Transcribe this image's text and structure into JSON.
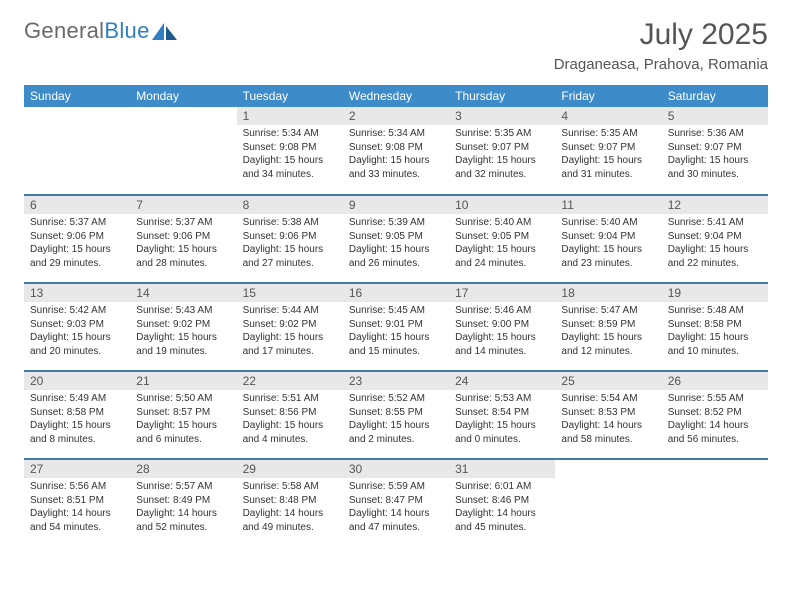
{
  "logo": {
    "word1": "General",
    "word2": "Blue"
  },
  "title": "July 2025",
  "location": "Draganeasa, Prahova, Romania",
  "colors": {
    "header_bg": "#3d8bc9",
    "header_text": "#ffffff",
    "daynum_bg": "#e8e8e8",
    "row_border": "#447aa8",
    "logo_gray": "#6a6a6a",
    "logo_blue": "#2f7fc2"
  },
  "weekdays": [
    "Sunday",
    "Monday",
    "Tuesday",
    "Wednesday",
    "Thursday",
    "Friday",
    "Saturday"
  ],
  "weeks": [
    [
      {
        "blank": true
      },
      {
        "blank": true
      },
      {
        "day": "1",
        "sunrise": "Sunrise: 5:34 AM",
        "sunset": "Sunset: 9:08 PM",
        "daylight1": "Daylight: 15 hours",
        "daylight2": "and 34 minutes."
      },
      {
        "day": "2",
        "sunrise": "Sunrise: 5:34 AM",
        "sunset": "Sunset: 9:08 PM",
        "daylight1": "Daylight: 15 hours",
        "daylight2": "and 33 minutes."
      },
      {
        "day": "3",
        "sunrise": "Sunrise: 5:35 AM",
        "sunset": "Sunset: 9:07 PM",
        "daylight1": "Daylight: 15 hours",
        "daylight2": "and 32 minutes."
      },
      {
        "day": "4",
        "sunrise": "Sunrise: 5:35 AM",
        "sunset": "Sunset: 9:07 PM",
        "daylight1": "Daylight: 15 hours",
        "daylight2": "and 31 minutes."
      },
      {
        "day": "5",
        "sunrise": "Sunrise: 5:36 AM",
        "sunset": "Sunset: 9:07 PM",
        "daylight1": "Daylight: 15 hours",
        "daylight2": "and 30 minutes."
      }
    ],
    [
      {
        "day": "6",
        "sunrise": "Sunrise: 5:37 AM",
        "sunset": "Sunset: 9:06 PM",
        "daylight1": "Daylight: 15 hours",
        "daylight2": "and 29 minutes."
      },
      {
        "day": "7",
        "sunrise": "Sunrise: 5:37 AM",
        "sunset": "Sunset: 9:06 PM",
        "daylight1": "Daylight: 15 hours",
        "daylight2": "and 28 minutes."
      },
      {
        "day": "8",
        "sunrise": "Sunrise: 5:38 AM",
        "sunset": "Sunset: 9:06 PM",
        "daylight1": "Daylight: 15 hours",
        "daylight2": "and 27 minutes."
      },
      {
        "day": "9",
        "sunrise": "Sunrise: 5:39 AM",
        "sunset": "Sunset: 9:05 PM",
        "daylight1": "Daylight: 15 hours",
        "daylight2": "and 26 minutes."
      },
      {
        "day": "10",
        "sunrise": "Sunrise: 5:40 AM",
        "sunset": "Sunset: 9:05 PM",
        "daylight1": "Daylight: 15 hours",
        "daylight2": "and 24 minutes."
      },
      {
        "day": "11",
        "sunrise": "Sunrise: 5:40 AM",
        "sunset": "Sunset: 9:04 PM",
        "daylight1": "Daylight: 15 hours",
        "daylight2": "and 23 minutes."
      },
      {
        "day": "12",
        "sunrise": "Sunrise: 5:41 AM",
        "sunset": "Sunset: 9:04 PM",
        "daylight1": "Daylight: 15 hours",
        "daylight2": "and 22 minutes."
      }
    ],
    [
      {
        "day": "13",
        "sunrise": "Sunrise: 5:42 AM",
        "sunset": "Sunset: 9:03 PM",
        "daylight1": "Daylight: 15 hours",
        "daylight2": "and 20 minutes."
      },
      {
        "day": "14",
        "sunrise": "Sunrise: 5:43 AM",
        "sunset": "Sunset: 9:02 PM",
        "daylight1": "Daylight: 15 hours",
        "daylight2": "and 19 minutes."
      },
      {
        "day": "15",
        "sunrise": "Sunrise: 5:44 AM",
        "sunset": "Sunset: 9:02 PM",
        "daylight1": "Daylight: 15 hours",
        "daylight2": "and 17 minutes."
      },
      {
        "day": "16",
        "sunrise": "Sunrise: 5:45 AM",
        "sunset": "Sunset: 9:01 PM",
        "daylight1": "Daylight: 15 hours",
        "daylight2": "and 15 minutes."
      },
      {
        "day": "17",
        "sunrise": "Sunrise: 5:46 AM",
        "sunset": "Sunset: 9:00 PM",
        "daylight1": "Daylight: 15 hours",
        "daylight2": "and 14 minutes."
      },
      {
        "day": "18",
        "sunrise": "Sunrise: 5:47 AM",
        "sunset": "Sunset: 8:59 PM",
        "daylight1": "Daylight: 15 hours",
        "daylight2": "and 12 minutes."
      },
      {
        "day": "19",
        "sunrise": "Sunrise: 5:48 AM",
        "sunset": "Sunset: 8:58 PM",
        "daylight1": "Daylight: 15 hours",
        "daylight2": "and 10 minutes."
      }
    ],
    [
      {
        "day": "20",
        "sunrise": "Sunrise: 5:49 AM",
        "sunset": "Sunset: 8:58 PM",
        "daylight1": "Daylight: 15 hours",
        "daylight2": "and 8 minutes."
      },
      {
        "day": "21",
        "sunrise": "Sunrise: 5:50 AM",
        "sunset": "Sunset: 8:57 PM",
        "daylight1": "Daylight: 15 hours",
        "daylight2": "and 6 minutes."
      },
      {
        "day": "22",
        "sunrise": "Sunrise: 5:51 AM",
        "sunset": "Sunset: 8:56 PM",
        "daylight1": "Daylight: 15 hours",
        "daylight2": "and 4 minutes."
      },
      {
        "day": "23",
        "sunrise": "Sunrise: 5:52 AM",
        "sunset": "Sunset: 8:55 PM",
        "daylight1": "Daylight: 15 hours",
        "daylight2": "and 2 minutes."
      },
      {
        "day": "24",
        "sunrise": "Sunrise: 5:53 AM",
        "sunset": "Sunset: 8:54 PM",
        "daylight1": "Daylight: 15 hours",
        "daylight2": "and 0 minutes."
      },
      {
        "day": "25",
        "sunrise": "Sunrise: 5:54 AM",
        "sunset": "Sunset: 8:53 PM",
        "daylight1": "Daylight: 14 hours",
        "daylight2": "and 58 minutes."
      },
      {
        "day": "26",
        "sunrise": "Sunrise: 5:55 AM",
        "sunset": "Sunset: 8:52 PM",
        "daylight1": "Daylight: 14 hours",
        "daylight2": "and 56 minutes."
      }
    ],
    [
      {
        "day": "27",
        "sunrise": "Sunrise: 5:56 AM",
        "sunset": "Sunset: 8:51 PM",
        "daylight1": "Daylight: 14 hours",
        "daylight2": "and 54 minutes."
      },
      {
        "day": "28",
        "sunrise": "Sunrise: 5:57 AM",
        "sunset": "Sunset: 8:49 PM",
        "daylight1": "Daylight: 14 hours",
        "daylight2": "and 52 minutes."
      },
      {
        "day": "29",
        "sunrise": "Sunrise: 5:58 AM",
        "sunset": "Sunset: 8:48 PM",
        "daylight1": "Daylight: 14 hours",
        "daylight2": "and 49 minutes."
      },
      {
        "day": "30",
        "sunrise": "Sunrise: 5:59 AM",
        "sunset": "Sunset: 8:47 PM",
        "daylight1": "Daylight: 14 hours",
        "daylight2": "and 47 minutes."
      },
      {
        "day": "31",
        "sunrise": "Sunrise: 6:01 AM",
        "sunset": "Sunset: 8:46 PM",
        "daylight1": "Daylight: 14 hours",
        "daylight2": "and 45 minutes."
      },
      {
        "blank": true
      },
      {
        "blank": true
      }
    ]
  ]
}
